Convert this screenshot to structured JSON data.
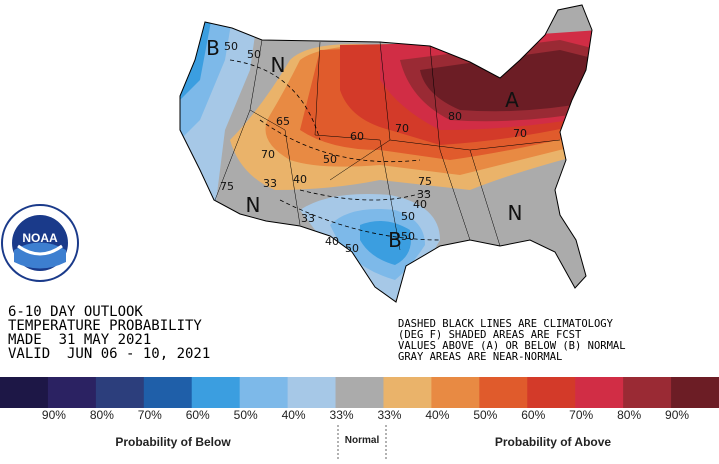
{
  "header": {
    "lines": [
      "6-10 DAY OUTLOOK",
      "TEMPERATURE PROBABILITY",
      "MADE  31 MAY 2021",
      "VALID  JUN 06 - 10, 2021"
    ]
  },
  "notes": [
    "DASHED BLACK LINES ARE CLIMATOLOGY",
    "(DEG F) SHADED AREAS ARE FCST",
    "VALUES ABOVE (A) OR BELOW (B) NORMAL",
    "GRAY AREAS ARE NEAR-NORMAL"
  ],
  "logo": {
    "text": "NOAA"
  },
  "map": {
    "labels": [
      "B",
      "50",
      "N",
      "50",
      "65",
      "70",
      "33",
      "40",
      "50",
      "60",
      "70",
      "80",
      "A",
      "70",
      "75",
      "75",
      "N",
      "33",
      "N",
      "33",
      "40",
      "50",
      "B",
      "40",
      "50",
      "50"
    ]
  },
  "legend": {
    "colors": [
      "#1d1746",
      "#2b2262",
      "#2c3e7c",
      "#1f5fa9",
      "#3b9ee0",
      "#7db9e9",
      "#a6c8e7",
      "#ababab",
      "#eab36a",
      "#e88a43",
      "#e05b2c",
      "#d33a29",
      "#d12d45",
      "#9a2a34",
      "#6c1d25"
    ],
    "labels": [
      "90%",
      "80%",
      "70%",
      "60%",
      "50%",
      "40%",
      "33%",
      "33%",
      "40%",
      "50%",
      "60%",
      "70%",
      "80%",
      "90%"
    ],
    "below": "Probability of Below",
    "normal": "Normal",
    "above": "Probability of Above"
  }
}
